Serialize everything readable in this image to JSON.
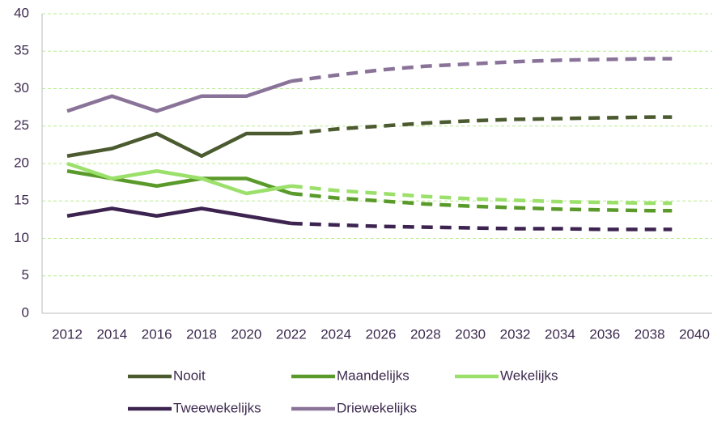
{
  "chart_data": {
    "type": "line",
    "x": [
      2012,
      2014,
      2016,
      2018,
      2020,
      2022,
      2024,
      2026,
      2028,
      2030,
      2032,
      2034,
      2036,
      2038,
      2039
    ],
    "xlim": [
      2012,
      2040
    ],
    "xticks": [
      2012,
      2014,
      2016,
      2018,
      2020,
      2022,
      2024,
      2026,
      2028,
      2030,
      2032,
      2034,
      2036,
      2038,
      2040
    ],
    "ylim": [
      0,
      40
    ],
    "yticks": [
      0,
      5,
      10,
      15,
      20,
      25,
      30,
      35,
      40
    ],
    "grid": true,
    "legend": "bottom",
    "series": [
      {
        "name": "Nooit",
        "color": "#4b5a2f",
        "values": [
          21,
          22,
          24,
          21,
          24,
          24,
          null,
          null,
          null,
          null,
          null,
          null,
          null,
          null,
          null
        ],
        "projection": [
          null,
          null,
          null,
          null,
          null,
          24,
          24.6,
          25.0,
          25.4,
          25.7,
          25.9,
          26.0,
          26.1,
          26.2,
          26.2
        ]
      },
      {
        "name": "Maandelijks",
        "color": "#5a9a2a",
        "values": [
          19,
          18,
          17,
          18,
          18,
          16,
          null,
          null,
          null,
          null,
          null,
          null,
          null,
          null,
          null
        ],
        "projection": [
          null,
          null,
          null,
          null,
          null,
          16,
          15.4,
          15.0,
          14.6,
          14.3,
          14.1,
          13.9,
          13.8,
          13.7,
          13.7
        ]
      },
      {
        "name": "Wekelijks",
        "color": "#9be06b",
        "values": [
          20,
          18,
          19,
          18,
          16,
          17,
          null,
          null,
          null,
          null,
          null,
          null,
          null,
          null,
          null
        ],
        "projection": [
          null,
          null,
          null,
          null,
          null,
          17,
          16.4,
          16.0,
          15.6,
          15.3,
          15.1,
          14.9,
          14.8,
          14.7,
          14.7
        ]
      },
      {
        "name": "Tweewekelijks",
        "color": "#3d2450",
        "values": [
          13,
          14,
          13,
          14,
          13,
          12,
          null,
          null,
          null,
          null,
          null,
          null,
          null,
          null,
          null
        ],
        "projection": [
          null,
          null,
          null,
          null,
          null,
          12,
          11.8,
          11.6,
          11.5,
          11.4,
          11.3,
          11.3,
          11.2,
          11.2,
          11.2
        ]
      },
      {
        "name": "Driewekelijks",
        "color": "#8a7398",
        "values": [
          27,
          29,
          27,
          29,
          29,
          31,
          null,
          null,
          null,
          null,
          null,
          null,
          null,
          null,
          null
        ],
        "projection": [
          null,
          null,
          null,
          null,
          null,
          31,
          31.8,
          32.5,
          33.0,
          33.3,
          33.6,
          33.8,
          33.9,
          34.0,
          34.0
        ]
      }
    ]
  }
}
